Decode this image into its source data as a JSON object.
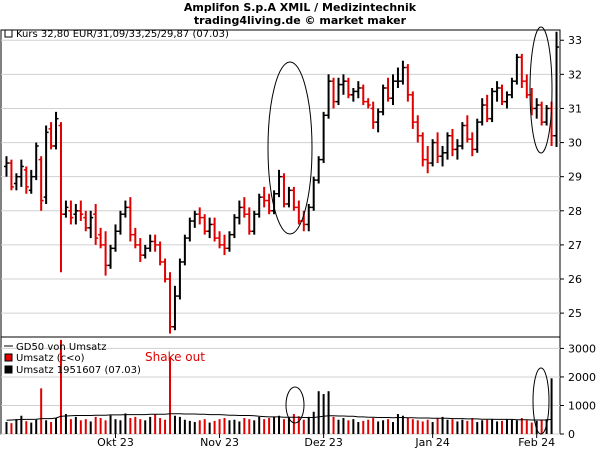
{
  "title_line1": "Amplifon S.p.A XMIL / Medizintechnik",
  "title_line2": "trading4living.de © market maker",
  "price_legend": "Kurs 32,80 EUR/31,09/33,25/29,87 (07.03)",
  "volume_legend": {
    "gd50": "GD50 von Umsatz",
    "down": "Umsatz (c<o)",
    "up": "Umsatz 1951607 (07.03)"
  },
  "annotation": "Shake out",
  "colors": {
    "up": "#000000",
    "down": "#e00000",
    "grid": "#d0d0d0"
  },
  "chart_data": [
    {
      "type": "ohlc",
      "ylim": [
        24.3,
        33.3
      ],
      "yticks": [
        "25",
        "26",
        "27",
        "28",
        "29",
        "30",
        "31",
        "32",
        "33"
      ],
      "ytick_values": [
        25,
        26,
        27,
        28,
        29,
        30,
        31,
        32,
        33
      ],
      "xticks": [
        "Okt 23",
        "Nov 23",
        "Dez 23",
        "Jan 24",
        "Feb 24"
      ],
      "xtick_positions": [
        22,
        43,
        64,
        86,
        107
      ],
      "ohlc": [
        [
          29.3,
          29.6,
          29.0,
          29.4
        ],
        [
          29.4,
          29.5,
          28.6,
          28.7
        ],
        [
          28.8,
          29.1,
          28.6,
          29.0
        ],
        [
          29.0,
          29.5,
          28.7,
          29.3
        ],
        [
          29.2,
          29.3,
          28.5,
          28.7
        ],
        [
          28.6,
          29.2,
          28.5,
          29.0
        ],
        [
          29.0,
          30.0,
          28.9,
          29.9
        ],
        [
          29.5,
          29.6,
          28.0,
          28.3
        ],
        [
          28.4,
          30.5,
          28.2,
          30.3
        ],
        [
          30.4,
          30.6,
          29.8,
          29.9
        ],
        [
          29.9,
          30.9,
          29.8,
          30.7
        ],
        [
          30.5,
          30.6,
          26.2,
          27.9
        ],
        [
          27.9,
          28.3,
          27.8,
          28.1
        ],
        [
          28.0,
          28.3,
          27.6,
          27.8
        ],
        [
          27.9,
          28.2,
          27.6,
          28.0
        ],
        [
          28.0,
          28.3,
          27.7,
          27.9
        ],
        [
          27.8,
          28.0,
          27.4,
          27.5
        ],
        [
          27.5,
          28.0,
          27.2,
          27.8
        ],
        [
          27.9,
          28.2,
          27.0,
          27.2
        ],
        [
          27.3,
          27.5,
          26.9,
          27.0
        ],
        [
          27.0,
          27.4,
          26.1,
          26.4
        ],
        [
          26.4,
          27.0,
          26.3,
          26.9
        ],
        [
          26.9,
          27.6,
          26.8,
          27.4
        ],
        [
          27.4,
          28.0,
          27.3,
          27.9
        ],
        [
          27.9,
          28.3,
          27.8,
          28.1
        ],
        [
          28.1,
          28.4,
          27.1,
          27.3
        ],
        [
          27.3,
          27.5,
          26.9,
          27.0
        ],
        [
          27.0,
          27.2,
          26.5,
          26.7
        ],
        [
          26.7,
          27.0,
          26.6,
          26.9
        ],
        [
          26.9,
          27.3,
          26.8,
          27.1
        ],
        [
          27.1,
          27.3,
          26.8,
          27.0
        ],
        [
          27.0,
          27.1,
          26.4,
          26.5
        ],
        [
          26.5,
          26.6,
          25.9,
          26.0
        ],
        [
          26.0,
          26.2,
          24.4,
          24.6
        ],
        [
          24.6,
          25.8,
          24.5,
          25.5
        ],
        [
          25.5,
          26.6,
          25.4,
          26.5
        ],
        [
          26.5,
          27.3,
          26.4,
          27.2
        ],
        [
          27.2,
          27.8,
          27.1,
          27.7
        ],
        [
          27.7,
          28.0,
          27.5,
          27.9
        ],
        [
          27.9,
          28.1,
          27.6,
          27.8
        ],
        [
          27.8,
          27.9,
          27.3,
          27.4
        ],
        [
          27.4,
          27.8,
          27.2,
          27.6
        ],
        [
          27.6,
          27.8,
          27.1,
          27.2
        ],
        [
          27.2,
          27.4,
          26.9,
          27.0
        ],
        [
          27.0,
          27.3,
          26.7,
          26.9
        ],
        [
          26.9,
          27.4,
          26.8,
          27.3
        ],
        [
          27.3,
          27.9,
          27.2,
          27.8
        ],
        [
          27.8,
          28.3,
          27.6,
          28.1
        ],
        [
          28.1,
          28.4,
          27.8,
          27.9
        ],
        [
          27.9,
          28.1,
          27.3,
          27.4
        ],
        [
          27.4,
          28.0,
          27.3,
          27.9
        ],
        [
          27.9,
          28.5,
          27.8,
          28.4
        ],
        [
          28.4,
          28.7,
          28.1,
          28.3
        ],
        [
          28.3,
          28.5,
          27.9,
          28.0
        ],
        [
          28.0,
          28.6,
          27.9,
          28.5
        ],
        [
          28.5,
          29.2,
          28.4,
          29.0
        ],
        [
          29.0,
          29.1,
          28.1,
          28.2
        ],
        [
          28.2,
          28.7,
          28.1,
          28.6
        ],
        [
          28.6,
          28.7,
          28.0,
          28.1
        ],
        [
          28.1,
          28.3,
          27.6,
          27.7
        ],
        [
          27.7,
          28.0,
          27.4,
          27.6
        ],
        [
          27.6,
          28.2,
          27.4,
          28.1
        ],
        [
          28.1,
          29.0,
          28.0,
          28.9
        ],
        [
          28.9,
          29.6,
          28.8,
          29.5
        ],
        [
          29.5,
          30.9,
          29.4,
          30.8
        ],
        [
          30.8,
          32.0,
          30.7,
          31.8
        ],
        [
          31.8,
          31.9,
          31.0,
          31.2
        ],
        [
          31.2,
          31.9,
          31.1,
          31.7
        ],
        [
          31.7,
          32.0,
          31.4,
          31.8
        ],
        [
          31.8,
          31.9,
          31.3,
          31.4
        ],
        [
          31.4,
          31.6,
          31.2,
          31.5
        ],
        [
          31.5,
          31.8,
          31.3,
          31.6
        ],
        [
          31.6,
          31.7,
          31.1,
          31.2
        ],
        [
          31.2,
          31.3,
          31.0,
          31.1
        ],
        [
          31.0,
          31.2,
          30.4,
          30.6
        ],
        [
          30.6,
          31.0,
          30.3,
          30.9
        ],
        [
          30.9,
          31.7,
          30.8,
          31.6
        ],
        [
          31.6,
          31.9,
          31.2,
          31.3
        ],
        [
          31.3,
          32.0,
          31.1,
          31.8
        ],
        [
          31.8,
          32.2,
          31.6,
          31.8
        ],
        [
          31.8,
          32.4,
          31.7,
          32.2
        ],
        [
          32.2,
          32.3,
          31.2,
          31.4
        ],
        [
          31.4,
          31.5,
          30.4,
          30.6
        ],
        [
          30.6,
          30.8,
          30.0,
          30.2
        ],
        [
          30.2,
          30.3,
          29.3,
          29.5
        ],
        [
          29.5,
          29.9,
          29.1,
          29.4
        ],
        [
          29.4,
          30.1,
          29.3,
          30.0
        ],
        [
          30.0,
          30.3,
          29.4,
          29.6
        ],
        [
          29.6,
          29.9,
          29.3,
          29.7
        ],
        [
          29.7,
          30.3,
          29.5,
          30.2
        ],
        [
          30.2,
          30.4,
          29.6,
          29.8
        ],
        [
          29.8,
          30.1,
          29.5,
          29.9
        ],
        [
          29.9,
          30.6,
          29.8,
          30.5
        ],
        [
          30.5,
          30.8,
          30.0,
          30.1
        ],
        [
          30.1,
          30.3,
          29.6,
          29.8
        ],
        [
          29.8,
          30.7,
          29.7,
          30.6
        ],
        [
          30.6,
          31.3,
          30.5,
          31.1
        ],
        [
          31.1,
          31.4,
          30.6,
          30.7
        ],
        [
          30.7,
          31.6,
          30.6,
          31.5
        ],
        [
          31.5,
          31.8,
          31.2,
          31.6
        ],
        [
          31.6,
          31.7,
          31.1,
          31.2
        ],
        [
          31.2,
          31.5,
          31.0,
          31.4
        ],
        [
          31.4,
          31.9,
          31.3,
          31.8
        ],
        [
          31.8,
          32.6,
          31.7,
          32.5
        ],
        [
          32.5,
          32.6,
          31.6,
          31.8
        ],
        [
          31.8,
          32.0,
          31.3,
          31.4
        ],
        [
          31.4,
          31.6,
          30.8,
          31.0
        ],
        [
          31.0,
          31.3,
          30.7,
          31.1
        ],
        [
          31.1,
          31.2,
          30.5,
          30.6
        ],
        [
          30.6,
          31.1,
          30.5,
          31.0
        ],
        [
          31.0,
          31.2,
          29.9,
          30.2
        ],
        [
          30.2,
          33.25,
          29.87,
          32.8
        ]
      ]
    },
    {
      "type": "bar",
      "series": [
        {
          "name": "Umsatz",
          "values": [
            420,
            380,
            520,
            640,
            450,
            400,
            500,
            1600,
            480,
            420,
            560,
            3300,
            700,
            520,
            600,
            480,
            520,
            440,
            600,
            560,
            480,
            650,
            520,
            480,
            720,
            560,
            600,
            520,
            480,
            600,
            700,
            560,
            500,
            2700,
            640,
            600,
            500,
            460,
            420,
            480,
            520,
            400,
            460,
            520,
            560,
            480,
            500,
            440,
            560,
            520,
            480,
            600,
            520,
            560,
            600,
            640,
            520,
            580,
            700,
            620,
            500,
            600,
            780,
            1500,
            1400,
            1500,
            600,
            500,
            560,
            480,
            520,
            420,
            460,
            500,
            560,
            440,
            480,
            520,
            420,
            700,
            640,
            560,
            520,
            480,
            440,
            500,
            420,
            560,
            600,
            500,
            520,
            440,
            500,
            460,
            560,
            420,
            480,
            500,
            520,
            440,
            460,
            520,
            500,
            480,
            560,
            480,
            400,
            460,
            480,
            520,
            1951.607
          ],
          "is_up": [
            1,
            0,
            1,
            1,
            0,
            1,
            1,
            0,
            1,
            0,
            1,
            0,
            1,
            0,
            1,
            0,
            0,
            1,
            0,
            0,
            0,
            1,
            1,
            1,
            1,
            0,
            0,
            0,
            1,
            1,
            0,
            0,
            0,
            0,
            1,
            1,
            1,
            1,
            1,
            0,
            0,
            1,
            0,
            0,
            0,
            1,
            1,
            1,
            0,
            0,
            1,
            1,
            0,
            0,
            1,
            1,
            0,
            1,
            0,
            0,
            0,
            1,
            1,
            1,
            1,
            1,
            0,
            1,
            1,
            0,
            1,
            1,
            0,
            0,
            0,
            1,
            1,
            0,
            1,
            1,
            1,
            0,
            0,
            0,
            0,
            0,
            1,
            0,
            1,
            1,
            0,
            1,
            1,
            0,
            0,
            1,
            1,
            0,
            1,
            1,
            0,
            1,
            1,
            1,
            0,
            0,
            0,
            1,
            0,
            1,
            1
          ]
        }
      ],
      "gd50": [
        480,
        490,
        500,
        510,
        510,
        510,
        520,
        540,
        540,
        540,
        560,
        620,
        630,
        640,
        650,
        650,
        650,
        650,
        660,
        660,
        660,
        670,
        670,
        670,
        680,
        680,
        680,
        680,
        680,
        690,
        690,
        690,
        690,
        710,
        710,
        710,
        700,
        700,
        700,
        690,
        690,
        680,
        680,
        680,
        670,
        660,
        660,
        650,
        650,
        650,
        640,
        620,
        610,
        600,
        600,
        600,
        590,
        590,
        590,
        590,
        580,
        580,
        580,
        600,
        620,
        640,
        640,
        630,
        630,
        620,
        620,
        600,
        600,
        590,
        590,
        580,
        580,
        580,
        570,
        580,
        580,
        570,
        570,
        560,
        560,
        560,
        550,
        550,
        550,
        550,
        540,
        540,
        540,
        530,
        530,
        530,
        520,
        520,
        520,
        510,
        510,
        510,
        510,
        500,
        500,
        500,
        490,
        490,
        490,
        490,
        520
      ],
      "ylim": [
        0,
        3400
      ],
      "yticks": [
        "0",
        "1000",
        "2000",
        "3000"
      ],
      "ytick_values": [
        0,
        1000,
        2000,
        3000
      ]
    }
  ]
}
